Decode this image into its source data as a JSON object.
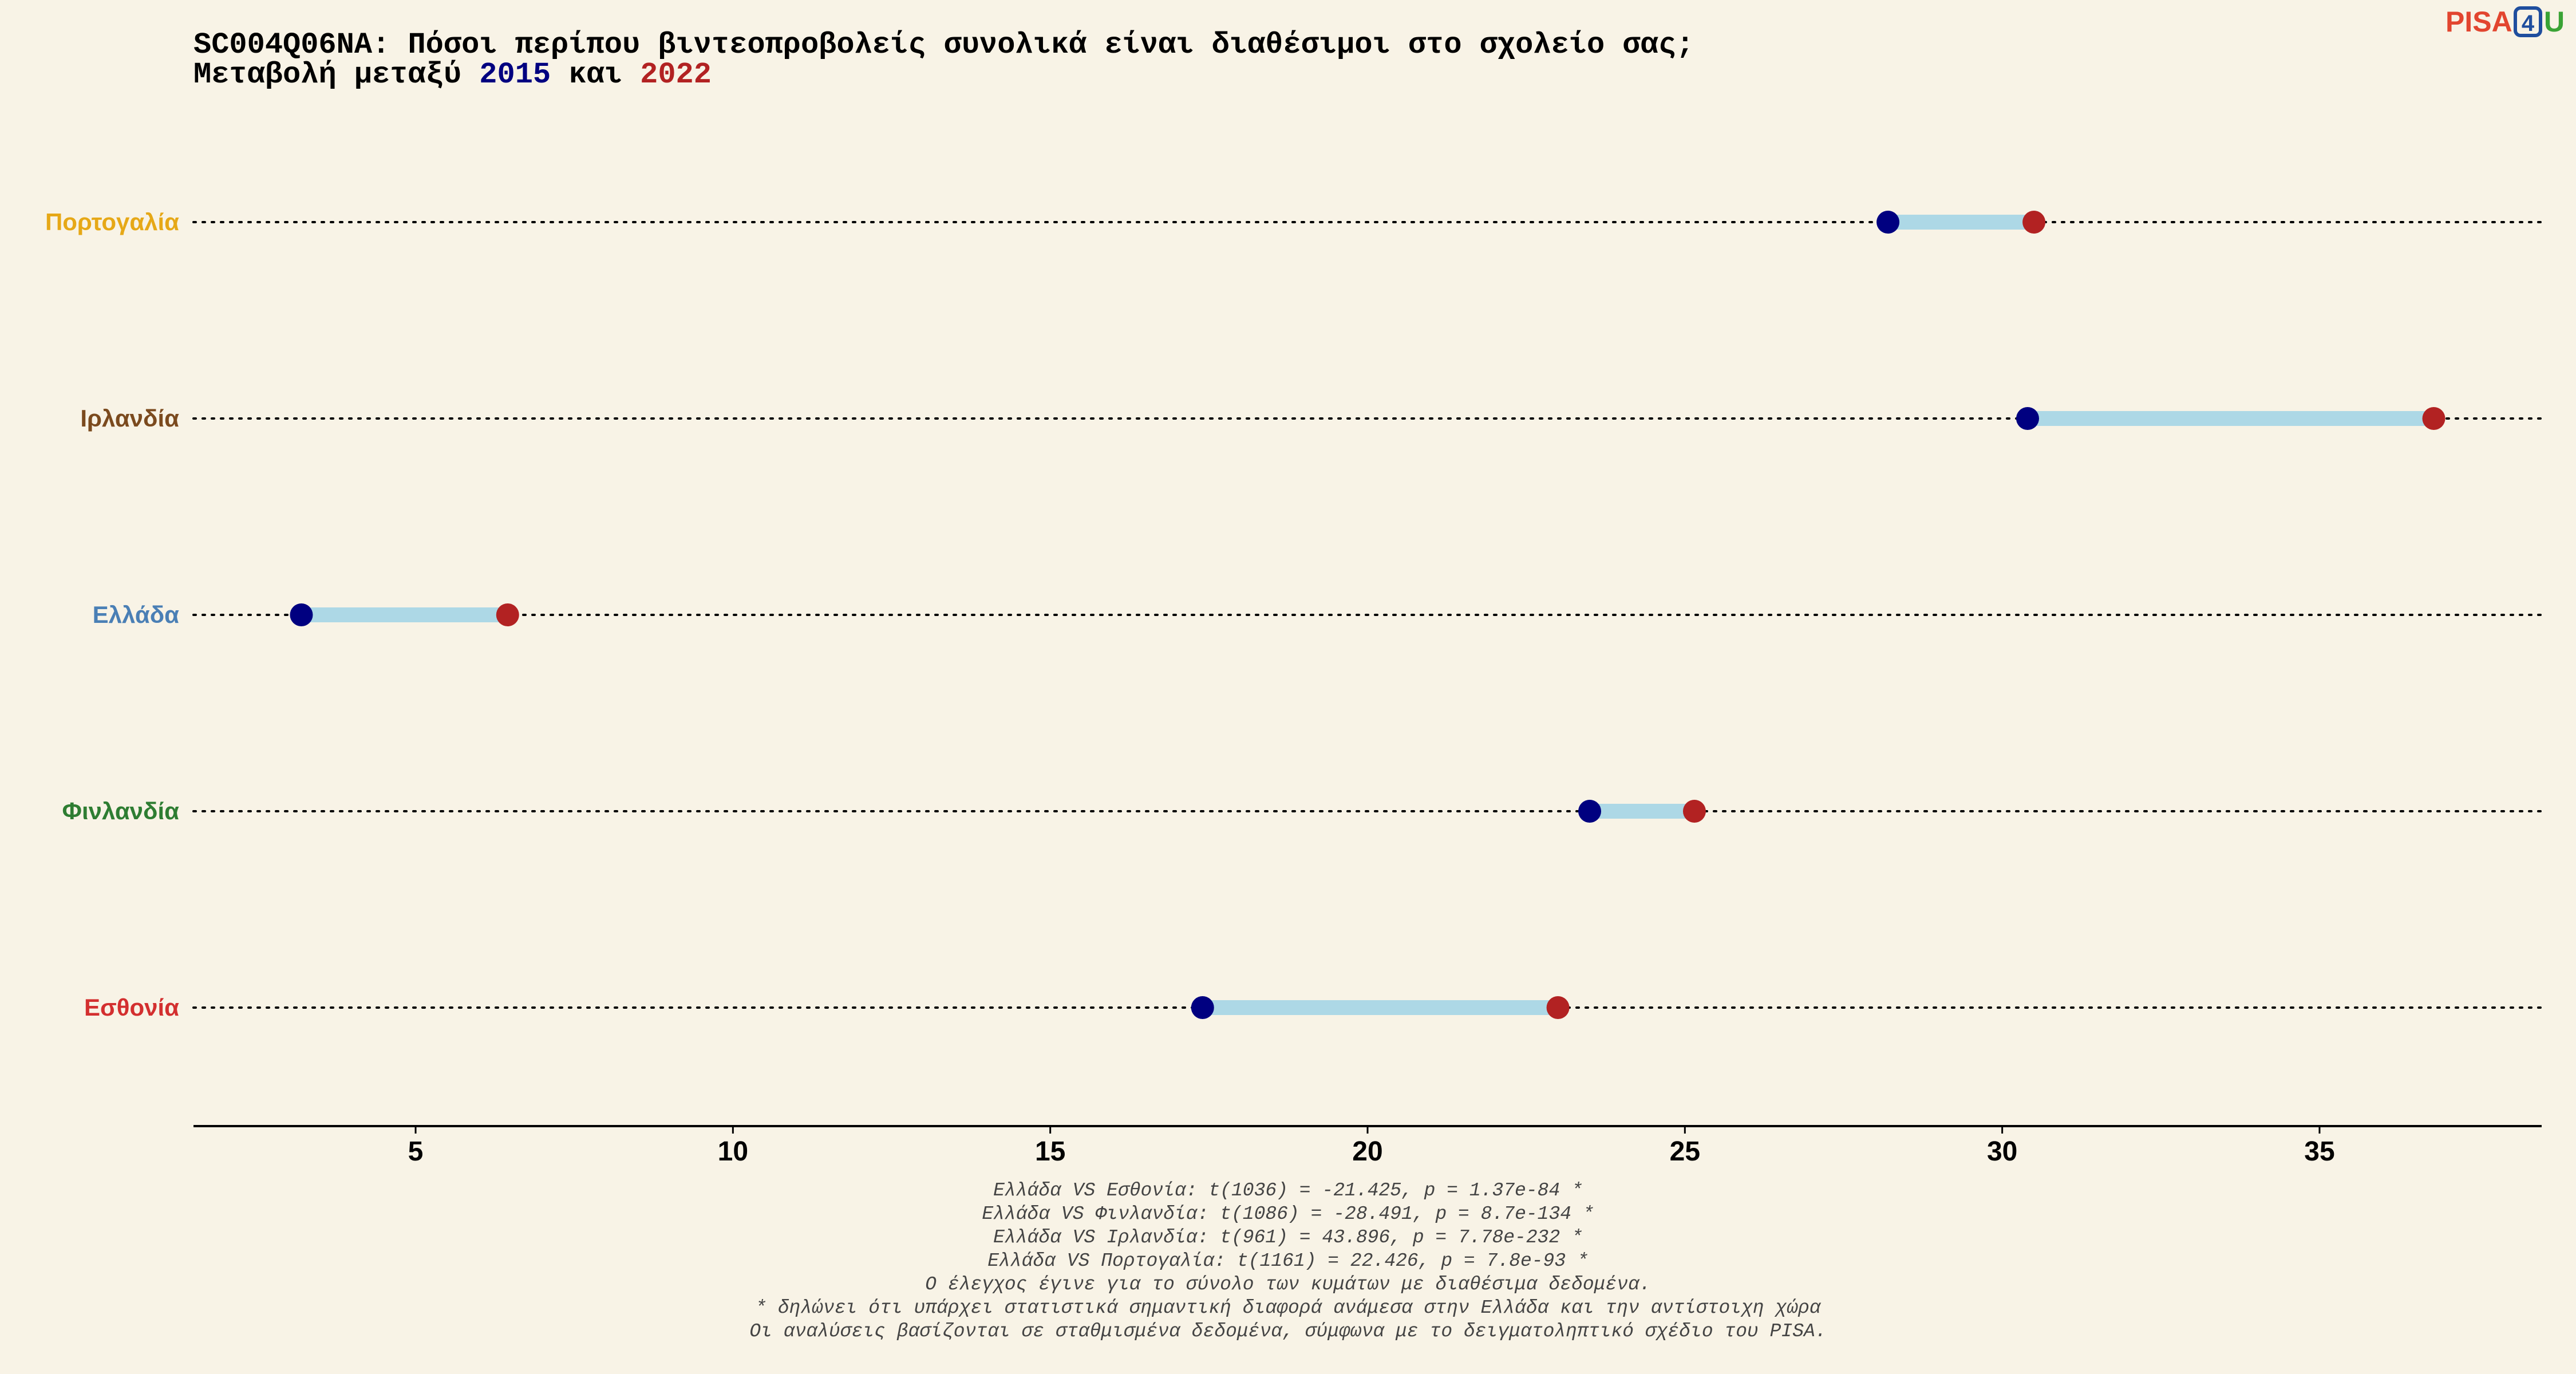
{
  "logo": {
    "text_left": "PISA",
    "text_box": "4",
    "text_right": "U",
    "color_left": "#e2452f",
    "color_box": "#1f4e9e",
    "color_right": "#3aa335"
  },
  "chart_data": {
    "type": "dumbbell",
    "title": "SC004Q06NA: Πόσοι περίπου βιντεοπροβολείς συνολικά είναι διαθέσιμοι στο σχολείο σας;",
    "subtitle_prefix": "Μεταβολή μεταξύ ",
    "subtitle_year1": "2015",
    "subtitle_mid": " και ",
    "subtitle_year2": "2022",
    "color_2015": "#000080",
    "color_2022": "#b22222",
    "segment_color": "#add8e6",
    "xlim": [
      1.5,
      38.5
    ],
    "x_ticks": [
      5,
      10,
      15,
      20,
      25,
      30,
      35
    ],
    "x_tick_labels": [
      "5",
      "10",
      "15",
      "20",
      "25",
      "30",
      "35"
    ],
    "grid": false,
    "categories": [
      {
        "label": "Πορτογαλία",
        "color": "#e6a817",
        "v2015": 28.2,
        "v2022": 30.5
      },
      {
        "label": "Ιρλανδία",
        "color": "#7b4a1e",
        "v2015": 30.4,
        "v2022": 36.8
      },
      {
        "label": "Ελλάδα",
        "color": "#4a7fb5",
        "v2015": 3.2,
        "v2022": 6.45
      },
      {
        "label": "Φινλανδία",
        "color": "#2e7d32",
        "v2015": 23.5,
        "v2022": 25.15
      },
      {
        "label": "Εσθονία",
        "color": "#d32f2f",
        "v2015": 17.4,
        "v2022": 23.0
      }
    ],
    "notes": [
      "Ελλάδα VS Εσθονία: t(1036) = -21.425, p = 1.37e-84 *",
      "Ελλάδα VS Φινλανδία: t(1086) = -28.491, p = 8.7e-134 *",
      "Ελλάδα VS Ιρλανδία: t(961) = 43.896, p = 7.78e-232 *",
      "Ελλάδα VS Πορτογαλία: t(1161) = 22.426, p = 7.8e-93 *",
      "Ο έλεγχος έγινε για το σύνολο των κυμάτων με διαθέσιμα δεδομένα.",
      "* δηλώνει ότι υπάρχει στατιστικά σημαντική διαφορά ανάμεσα στην Ελλάδα και την αντίστοιχη χώρα",
      "Οι αναλύσεις βασίζονται σε σταθμισμένα δεδομένα, σύμφωνα με το δειγματοληπτικό σχέδιο του PISA."
    ]
  }
}
